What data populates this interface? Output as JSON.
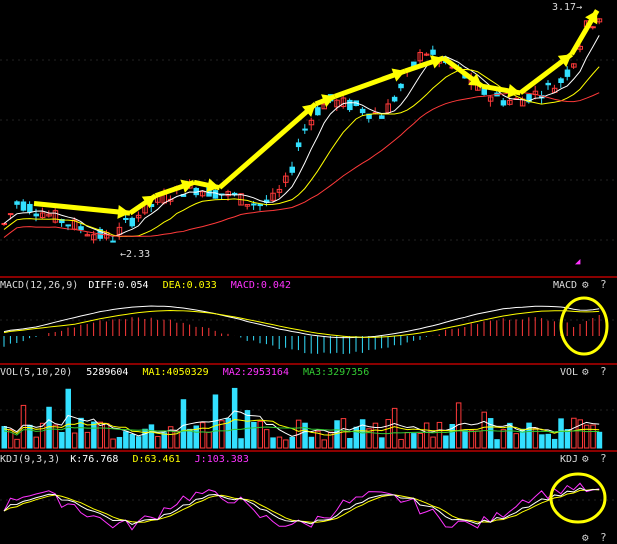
{
  "colors": {
    "background": "#000000",
    "up": "#ff3a3a",
    "down": "#33e0ff",
    "white_line": "#ffffff",
    "yellow_line": "#ffff00",
    "magenta_line": "#ff33ff",
    "green_line": "#33cc33",
    "annotation": "#ffff00",
    "panel_border": "#8b0000"
  },
  "price_panel": {
    "high_label": "3.17",
    "low_label": "2.33"
  },
  "macd_panel": {
    "name": "MACD(12,26,9)",
    "diff": "DIFF:0.054",
    "dea": "DEA:0.033",
    "macd": "MACD:0.042",
    "title_right": "MACD"
  },
  "vol_panel": {
    "name": "VOL(5,10,20)",
    "volume": "5289604",
    "ma1": "MA1:4050329",
    "ma2": "MA2:2953164",
    "ma3": "MA3:3297356",
    "title_right": "VOL"
  },
  "kdj_panel": {
    "name": "KDJ(9,3,3)",
    "k": "K:76.768",
    "d": "D:63.461",
    "j": "J:103.383",
    "title_right": "KDJ"
  },
  "icons": [
    "gear-icon",
    "help-icon"
  ],
  "icon_glyphs": {
    "gear": "⚙",
    "help": "?"
  },
  "chart_data": {
    "type": "candlestick",
    "price_high": 3.17,
    "price_low": 2.33,
    "trend_points": [
      2.4,
      2.48,
      2.46,
      2.44,
      2.42,
      2.4,
      2.38,
      2.36,
      2.35,
      2.4,
      2.44,
      2.47,
      2.5,
      2.52,
      2.53,
      2.52,
      2.51,
      2.5,
      2.48,
      2.47,
      2.49,
      2.56,
      2.72,
      2.8,
      2.84,
      2.83,
      2.82,
      2.8,
      2.79,
      2.86,
      2.94,
      3.02,
      2.99,
      2.96,
      2.93,
      2.88,
      2.86,
      2.84,
      2.84,
      2.86,
      2.88,
      2.9,
      2.97,
      3.1,
      3.14
    ],
    "annotations": "yellow arrows tracing the price path; yellow circles highlighting MACD and KDJ golden crosses"
  }
}
